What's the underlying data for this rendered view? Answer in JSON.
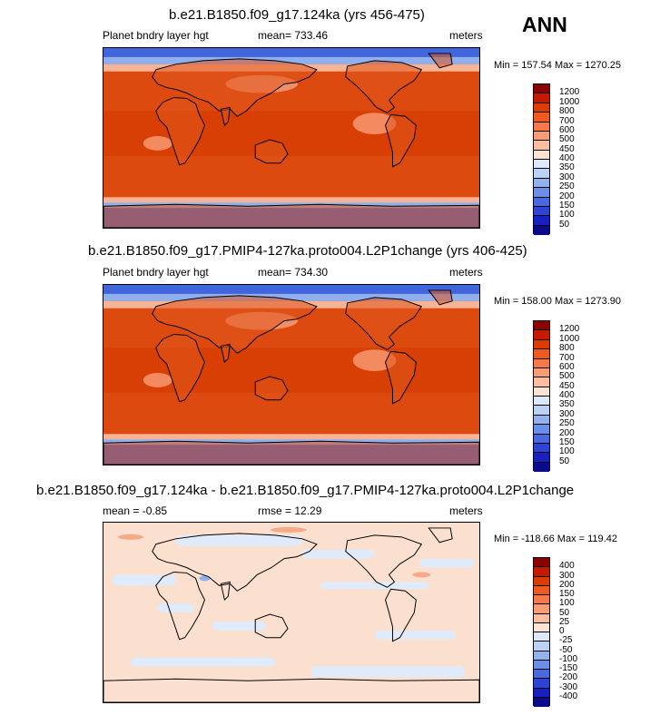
{
  "season": "ANN",
  "panels": [
    {
      "title": "b.e21.B1850.f09_g17.124ka (yrs 456-475)",
      "variable": "Planet bndry layer hgt",
      "stat": "mean= 733.46",
      "units": "meters",
      "minmax": "Min = 157.54 Max = 1270.25",
      "levels": [
        "1200",
        "1000",
        "800",
        "700",
        "600",
        "500",
        "450",
        "400",
        "350",
        "300",
        "250",
        "200",
        "150",
        "100",
        "50"
      ],
      "colors": [
        "#8b0000",
        "#c41a00",
        "#dd3c00",
        "#ef5a1e",
        "#f57a48",
        "#f99b73",
        "#fbbfa0",
        "#fde3d2",
        "#dde9fa",
        "#bcd2f5",
        "#92b2ee",
        "#6a8fe8",
        "#4869e0",
        "#2c45d4",
        "#1820c2",
        "#0a0a8c"
      ],
      "map_style": "full"
    },
    {
      "title": "b.e21.B1850.f09_g17.PMIP4-127ka.proto004.L2P1change (yrs 406-425)",
      "variable": "Planet bndry layer hgt",
      "stat": "mean= 734.30",
      "units": "meters",
      "minmax": "Min = 158.00 Max = 1273.90",
      "levels": [
        "1200",
        "1000",
        "800",
        "700",
        "600",
        "500",
        "450",
        "400",
        "350",
        "300",
        "250",
        "200",
        "150",
        "100",
        "50"
      ],
      "colors": [
        "#8b0000",
        "#c41a00",
        "#dd3c00",
        "#ef5a1e",
        "#f57a48",
        "#f99b73",
        "#fbbfa0",
        "#fde3d2",
        "#dde9fa",
        "#bcd2f5",
        "#92b2ee",
        "#6a8fe8",
        "#4869e0",
        "#2c45d4",
        "#1820c2",
        "#0a0a8c"
      ],
      "map_style": "full"
    },
    {
      "title": "b.e21.B1850.f09_g17.124ka - b.e21.B1850.f09_g17.PMIP4-127ka.proto004.L2P1change",
      "variable": "mean =  -0.85",
      "stat": "rmse =  12.29",
      "units": "meters",
      "minmax": "Min = -118.66 Max = 119.42",
      "levels": [
        "400",
        "300",
        "200",
        "150",
        "100",
        "50",
        "25",
        "0",
        "-25",
        "-50",
        "-100",
        "-150",
        "-200",
        "-300",
        "-400"
      ],
      "colors": [
        "#8b0000",
        "#c41a00",
        "#dd3c00",
        "#ef5a1e",
        "#f57a48",
        "#f99b73",
        "#fbbfa0",
        "#fde3d2",
        "#dde9fa",
        "#bcd2f5",
        "#92b2ee",
        "#6a8fe8",
        "#4869e0",
        "#2c45d4",
        "#1820c2",
        "#0a0a8c"
      ],
      "map_style": "diff"
    }
  ]
}
